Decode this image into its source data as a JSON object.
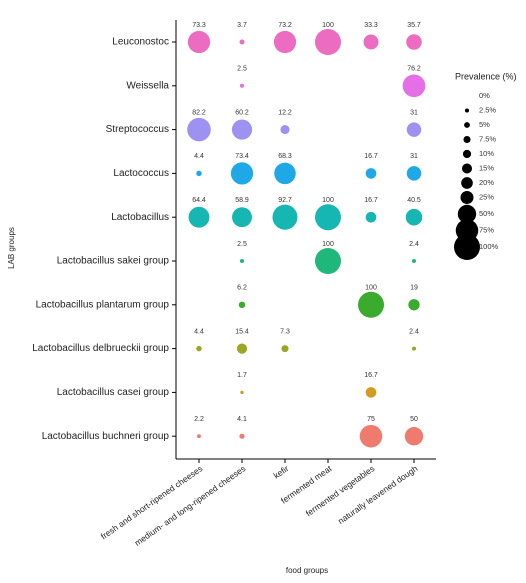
{
  "chart_data": {
    "type": "bubble",
    "x_label": "food groups",
    "y_label": "LAB groups",
    "categories": [
      "fresh and short-ripened cheeses",
      "medium- and long-ripened cheeses",
      "kefir",
      "fermented meat",
      "fermented vegetables",
      "naturally leavened dough"
    ],
    "series": [
      {
        "name": "Leuconostoc",
        "color": "#ec6cc2",
        "values": [
          73.3,
          3.7,
          73.2,
          100,
          33.3,
          35.7
        ]
      },
      {
        "name": "Weissella",
        "color": "#e46fe6",
        "values": [
          null,
          2.5,
          null,
          null,
          null,
          76.2
        ]
      },
      {
        "name": "Streptococcus",
        "color": "#9d92f2",
        "values": [
          82.2,
          60.2,
          12.2,
          null,
          null,
          31
        ]
      },
      {
        "name": "Lactococcus",
        "color": "#1ea8e8",
        "values": [
          4.4,
          73.4,
          68.3,
          null,
          16.7,
          31
        ]
      },
      {
        "name": "Lactobacillus",
        "color": "#16b6b2",
        "values": [
          64.4,
          58.9,
          92.7,
          100,
          16.7,
          40.5
        ]
      },
      {
        "name": "Lactobacillus sakei group",
        "color": "#20b87a",
        "values": [
          null,
          2.5,
          null,
          100,
          null,
          2.4
        ]
      },
      {
        "name": "Lactobacillus plantarum group",
        "color": "#3aab2c",
        "values": [
          null,
          6.2,
          null,
          null,
          100,
          19
        ]
      },
      {
        "name": "Lactobacillus delbrueckii group",
        "color": "#9ca624",
        "values": [
          4.4,
          15.4,
          7.3,
          null,
          null,
          2.4
        ]
      },
      {
        "name": "Lactobacillus casei group",
        "color": "#d49b22",
        "values": [
          null,
          1.7,
          null,
          null,
          16.7,
          null
        ]
      },
      {
        "name": "Lactobacillus buchneri group",
        "color": "#ef7b6f",
        "values": [
          2.2,
          4.1,
          null,
          null,
          75,
          50
        ]
      }
    ],
    "size_legend_title": "Prevalence (%)",
    "size_legend": [
      {
        "value": 0,
        "label": "0%"
      },
      {
        "value": 2.5,
        "label": "2.5%"
      },
      {
        "value": 5,
        "label": "5%"
      },
      {
        "value": 7.5,
        "label": "7.5%"
      },
      {
        "value": 10,
        "label": "10%"
      },
      {
        "value": 15,
        "label": "15%"
      },
      {
        "value": 20,
        "label": "20%"
      },
      {
        "value": 25,
        "label": "25%"
      },
      {
        "value": 50,
        "label": "50%"
      },
      {
        "value": 75,
        "label": "75%"
      },
      {
        "value": 100,
        "label": "100%"
      }
    ]
  }
}
